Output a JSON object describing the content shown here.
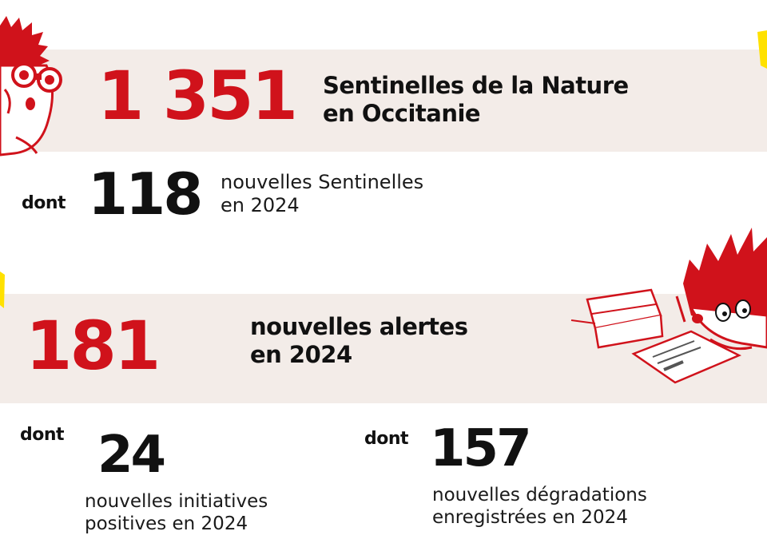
{
  "colors": {
    "accent_red": "#d0121b",
    "band_bg": "#f3ece8",
    "highlight_yellow": "#ffe100"
  },
  "section1": {
    "total": "1 351",
    "title_line1": "Sentinelles de la Nature",
    "title_line2": "en Occitanie",
    "dont": "dont",
    "new_count": "118",
    "new_line1": "nouvelles Sentinelles",
    "new_line2": "en 2024"
  },
  "section2": {
    "total": "181",
    "title_line1": "nouvelles alertes",
    "title_line2": "en 2024",
    "positive": {
      "dont": "dont",
      "count": "24",
      "line1": "nouvelles initiatives",
      "line2": "positives en 2024"
    },
    "degradations": {
      "dont": "dont",
      "count": "157",
      "line1": "nouvelles dégradations",
      "line2": "enregistrées en 2024"
    }
  },
  "illustrations": {
    "top": "hedgehog-with-binoculars-icon",
    "middle": "hedgehog-writing-documents-icon"
  }
}
